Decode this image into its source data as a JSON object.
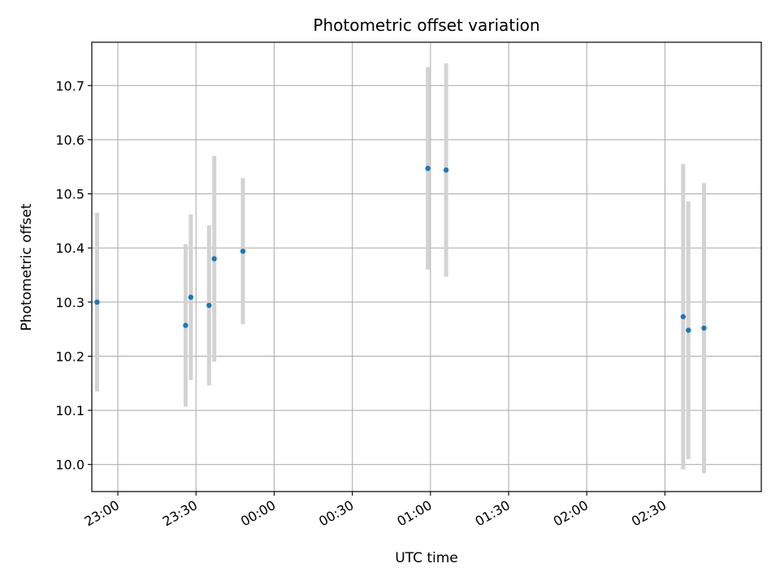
{
  "chart_data": {
    "type": "scatter",
    "title": "Photometric offset variation",
    "xlabel": "UTC time",
    "ylabel": "Photometric offset",
    "xlim": [
      "22:50",
      "03:07"
    ],
    "ylim": [
      9.95,
      10.78
    ],
    "grid": true,
    "x_ticks": [
      "23:00",
      "23:30",
      "00:00",
      "00:30",
      "01:00",
      "01:30",
      "02:00",
      "02:30"
    ],
    "y_ticks": [
      10.0,
      10.1,
      10.2,
      10.3,
      10.4,
      10.5,
      10.6,
      10.7
    ],
    "colors": {
      "point": "#1f77b4",
      "errorbar": "#d3d3d3",
      "grid": "#b0b0b0"
    },
    "series": [
      {
        "points": [
          {
            "x": "22:52",
            "y": 10.3,
            "err": 0.165
          },
          {
            "x": "23:26",
            "y": 10.257,
            "err": 0.15
          },
          {
            "x": "23:28",
            "y": 10.309,
            "err": 0.153
          },
          {
            "x": "23:35",
            "y": 10.294,
            "err": 0.148
          },
          {
            "x": "23:37",
            "y": 10.38,
            "err": 0.19
          },
          {
            "x": "23:48",
            "y": 10.394,
            "err": 0.135
          },
          {
            "x": "00:59",
            "y": 10.547,
            "err": 0.187
          },
          {
            "x": "01:06",
            "y": 10.544,
            "err": 0.197
          },
          {
            "x": "02:37",
            "y": 10.273,
            "err": 0.282
          },
          {
            "x": "02:39",
            "y": 10.248,
            "err": 0.238
          },
          {
            "x": "02:45",
            "y": 10.252,
            "err": 0.268
          }
        ]
      }
    ]
  }
}
